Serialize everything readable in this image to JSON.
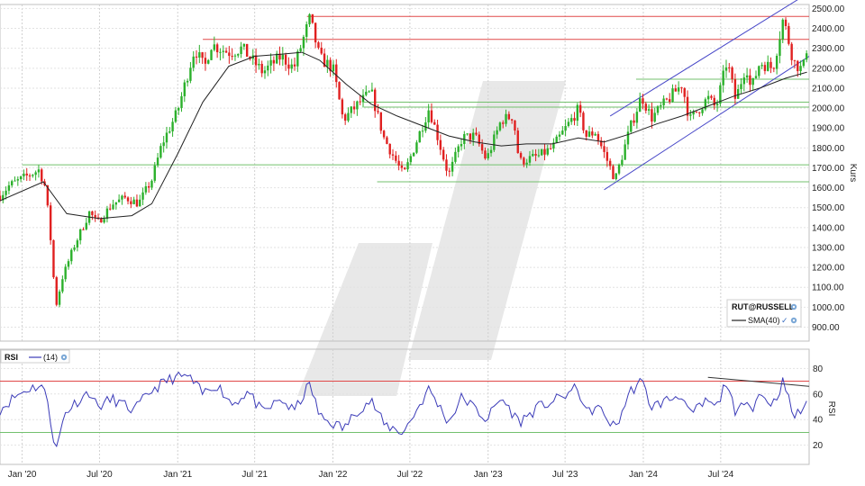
{
  "chart_data": [
    {
      "type": "candlestick",
      "symbol": "RUT@RUSSELL",
      "ylabel": "Kurs",
      "ylim": [
        830,
        2520
      ],
      "yticks": [
        900,
        1000,
        1100,
        1200,
        1300,
        1400,
        1500,
        1600,
        1700,
        1800,
        1900,
        2000,
        2100,
        2200,
        2300,
        2400,
        2500
      ],
      "ytick_labels": [
        "900.00",
        "1000.00",
        "1100.00",
        "1200.00",
        "1300.00",
        "1400.00",
        "1500.00",
        "1600.00",
        "1700.00",
        "1800.00",
        "1900.00",
        "2000.00",
        "2100.00",
        "2200.00",
        "2300.00",
        "2400.00",
        "2500.00"
      ],
      "xlim": [
        "2019-11-10",
        "2025-01-25"
      ],
      "xticks": [
        "2020-01-01",
        "2020-07-01",
        "2021-01-01",
        "2021-07-01",
        "2022-01-01",
        "2022-07-01",
        "2023-01-01",
        "2023-07-01",
        "2024-01-01",
        "2024-07-01"
      ],
      "xtick_labels": [
        "Jan '20",
        "Jul '20",
        "Jan '21",
        "Jul '21",
        "Jan '22",
        "Jul '22",
        "Jan '23",
        "Jul '23",
        "Jan '24",
        "Jul '24"
      ],
      "close_path": [
        [
          "2019-11-10",
          1560
        ],
        [
          "2019-12-01",
          1610
        ],
        [
          "2020-01-05",
          1650
        ],
        [
          "2020-02-10",
          1690
        ],
        [
          "2020-02-25",
          1600
        ],
        [
          "2020-03-10",
          1300
        ],
        [
          "2020-03-20",
          1000
        ],
        [
          "2020-04-05",
          1150
        ],
        [
          "2020-05-01",
          1300
        ],
        [
          "2020-06-08",
          1480
        ],
        [
          "2020-06-25",
          1420
        ],
        [
          "2020-08-01",
          1520
        ],
        [
          "2020-09-01",
          1550
        ],
        [
          "2020-10-01",
          1520
        ],
        [
          "2020-11-01",
          1640
        ],
        [
          "2020-11-25",
          1820
        ],
        [
          "2020-12-31",
          1980
        ],
        [
          "2021-02-10",
          2300
        ],
        [
          "2021-03-05",
          2200
        ],
        [
          "2021-03-20",
          2320
        ],
        [
          "2021-05-01",
          2280
        ],
        [
          "2021-06-01",
          2300
        ],
        [
          "2021-07-20",
          2180
        ],
        [
          "2021-09-01",
          2260
        ],
        [
          "2021-10-01",
          2200
        ],
        [
          "2021-11-08",
          2450
        ],
        [
          "2021-12-01",
          2250
        ],
        [
          "2022-01-01",
          2200
        ],
        [
          "2022-01-25",
          1940
        ],
        [
          "2022-03-01",
          2020
        ],
        [
          "2022-04-01",
          2080
        ],
        [
          "2022-05-01",
          1850
        ],
        [
          "2022-06-16",
          1660
        ],
        [
          "2022-08-15",
          2000
        ],
        [
          "2022-09-01",
          1880
        ],
        [
          "2022-09-30",
          1660
        ],
        [
          "2022-11-01",
          1850
        ],
        [
          "2022-12-01",
          1860
        ],
        [
          "2022-12-28",
          1740
        ],
        [
          "2023-02-01",
          1940
        ],
        [
          "2023-03-01",
          1960
        ],
        [
          "2023-03-15",
          1730
        ],
        [
          "2023-05-01",
          1760
        ],
        [
          "2023-06-01",
          1800
        ],
        [
          "2023-07-31",
          1990
        ],
        [
          "2023-08-20",
          1860
        ],
        [
          "2023-09-10",
          1880
        ],
        [
          "2023-10-27",
          1640
        ],
        [
          "2023-12-01",
          1900
        ],
        [
          "2023-12-28",
          2060
        ],
        [
          "2024-01-20",
          1950
        ],
        [
          "2024-04-01",
          2120
        ],
        [
          "2024-04-19",
          1940
        ],
        [
          "2024-06-01",
          2050
        ],
        [
          "2024-06-20",
          2000
        ],
        [
          "2024-07-16",
          2240
        ],
        [
          "2024-08-05",
          2040
        ],
        [
          "2024-08-30",
          2220
        ],
        [
          "2024-09-10",
          2090
        ],
        [
          "2024-10-01",
          2230
        ],
        [
          "2024-11-01",
          2200
        ],
        [
          "2024-11-25",
          2450
        ],
        [
          "2024-12-20",
          2230
        ],
        [
          "2025-01-10",
          2190
        ],
        [
          "2025-01-20",
          2310
        ]
      ],
      "series": [
        {
          "name": "SMA(40)",
          "points": [
            [
              "2019-11-10",
              1535
            ],
            [
              "2020-02-20",
              1630
            ],
            [
              "2020-04-15",
              1470
            ],
            [
              "2020-07-01",
              1445
            ],
            [
              "2020-09-15",
              1460
            ],
            [
              "2020-11-01",
              1520
            ],
            [
              "2021-01-01",
              1770
            ],
            [
              "2021-03-01",
              2030
            ],
            [
              "2021-05-01",
              2210
            ],
            [
              "2021-07-01",
              2260
            ],
            [
              "2021-09-01",
              2270
            ],
            [
              "2021-10-20",
              2280
            ],
            [
              "2021-12-01",
              2240
            ],
            [
              "2022-02-01",
              2120
            ],
            [
              "2022-04-01",
              2020
            ],
            [
              "2022-06-01",
              1960
            ],
            [
              "2022-08-01",
              1910
            ],
            [
              "2022-10-01",
              1860
            ],
            [
              "2022-12-01",
              1830
            ],
            [
              "2023-02-01",
              1810
            ],
            [
              "2023-04-01",
              1820
            ],
            [
              "2023-06-01",
              1820
            ],
            [
              "2023-08-01",
              1850
            ],
            [
              "2023-10-01",
              1830
            ],
            [
              "2023-12-01",
              1870
            ],
            [
              "2024-02-01",
              1920
            ],
            [
              "2024-04-01",
              1960
            ],
            [
              "2024-06-01",
              2010
            ],
            [
              "2024-08-01",
              2060
            ],
            [
              "2024-10-01",
              2100
            ],
            [
              "2024-12-01",
              2150
            ],
            [
              "2025-01-20",
              2180
            ]
          ]
        }
      ],
      "horizontal_lines": [
        {
          "value": 2460,
          "color": "#e04848",
          "from": "2021-11-01",
          "to": "2025-01-25"
        },
        {
          "value": 2345,
          "color": "#e04848",
          "from": "2021-03-01",
          "to": "2025-01-25"
        },
        {
          "value": 2145,
          "color": "#73c16e",
          "from": "2023-12-15",
          "to": "2025-01-25"
        },
        {
          "value": 2030,
          "color": "#73c16e",
          "from": "2022-03-15",
          "to": "2025-01-25"
        },
        {
          "value": 2005,
          "color": "#73c16e",
          "from": "2022-03-15",
          "to": "2025-01-25"
        },
        {
          "value": 1715,
          "color": "#73c16e",
          "from": "2020-01-01",
          "to": "2025-01-25"
        },
        {
          "value": 1630,
          "color": "#73c16e",
          "from": "2022-04-15",
          "to": "2025-01-25"
        }
      ],
      "trend_lines": [
        {
          "from": [
            "2023-10-01",
            1590
          ],
          "to": [
            "2025-01-25",
            2260
          ],
          "color": "#4848c8"
        },
        {
          "from": [
            "2023-10-15",
            1960
          ],
          "to": [
            "2025-01-10",
            2560
          ],
          "color": "#4848c8"
        }
      ],
      "legend": {
        "symbol_label": "RUT@RUSSELL",
        "sma_label": "SMA(40)",
        "placement": "bottom-right"
      }
    },
    {
      "type": "line",
      "title": "RSI",
      "series": [
        {
          "name": "(14)",
          "points": [
            [
              "2019-11-10",
              48
            ],
            [
              "2019-12-15",
              58
            ],
            [
              "2020-01-15",
              64
            ],
            [
              "2020-02-15",
              67
            ],
            [
              "2020-03-01",
              55
            ],
            [
              "2020-03-15",
              25
            ],
            [
              "2020-03-22",
              17
            ],
            [
              "2020-04-10",
              45
            ],
            [
              "2020-05-01",
              52
            ],
            [
              "2020-06-08",
              62
            ],
            [
              "2020-06-25",
              50
            ],
            [
              "2020-08-01",
              56
            ],
            [
              "2020-09-20",
              47
            ],
            [
              "2020-11-01",
              63
            ],
            [
              "2020-12-15",
              72
            ],
            [
              "2021-01-25",
              74
            ],
            [
              "2021-03-01",
              60
            ],
            [
              "2021-04-01",
              68
            ],
            [
              "2021-05-10",
              52
            ],
            [
              "2021-06-15",
              62
            ],
            [
              "2021-07-20",
              45
            ],
            [
              "2021-09-01",
              56
            ],
            [
              "2021-10-01",
              46
            ],
            [
              "2021-11-08",
              68
            ],
            [
              "2021-12-01",
              42
            ],
            [
              "2022-01-27",
              33
            ],
            [
              "2022-03-01",
              48
            ],
            [
              "2022-04-01",
              55
            ],
            [
              "2022-05-01",
              36
            ],
            [
              "2022-06-16",
              30
            ],
            [
              "2022-08-15",
              64
            ],
            [
              "2022-09-30",
              38
            ],
            [
              "2022-11-01",
              58
            ],
            [
              "2022-12-28",
              40
            ],
            [
              "2023-02-01",
              57
            ],
            [
              "2023-03-15",
              38
            ],
            [
              "2023-05-01",
              50
            ],
            [
              "2023-06-15",
              56
            ],
            [
              "2023-07-31",
              65
            ],
            [
              "2023-08-20",
              45
            ],
            [
              "2023-09-15",
              50
            ],
            [
              "2023-10-27",
              33
            ],
            [
              "2023-12-01",
              62
            ],
            [
              "2023-12-28",
              70
            ],
            [
              "2024-01-20",
              50
            ],
            [
              "2024-04-01",
              60
            ],
            [
              "2024-04-19",
              43
            ],
            [
              "2024-06-01",
              55
            ],
            [
              "2024-06-20",
              48
            ],
            [
              "2024-07-16",
              72
            ],
            [
              "2024-08-05",
              40
            ],
            [
              "2024-08-30",
              60
            ],
            [
              "2024-09-10",
              48
            ],
            [
              "2024-10-01",
              60
            ],
            [
              "2024-11-01",
              52
            ],
            [
              "2024-11-25",
              70
            ],
            [
              "2024-12-20",
              42
            ],
            [
              "2025-01-10",
              48
            ],
            [
              "2025-01-20",
              56
            ]
          ]
        }
      ],
      "ylabel": "RSI",
      "ylim": [
        5,
        95
      ],
      "yticks": [
        20,
        40,
        60,
        80
      ],
      "ytick_labels": [
        "20",
        "40",
        "60",
        "80"
      ],
      "horizontal_lines": [
        {
          "value": 70,
          "color": "#e04848"
        },
        {
          "value": 30,
          "color": "#73c16e"
        }
      ],
      "trend_lines": [
        {
          "from": [
            "2024-06-01",
            73
          ],
          "to": [
            "2025-01-25",
            66
          ],
          "color": "#333333"
        }
      ]
    }
  ],
  "icons": {
    "symbol_menu": "gear-icon",
    "sma_toggle": "check-icon",
    "sma_menu": "gear-icon",
    "rsi_menu": "gear-icon"
  },
  "colors": {
    "up": "#2bb02b",
    "down": "#e02020",
    "sma": "#222222",
    "rsi_line": "#3b3bb8",
    "watermark": "#e6e6e6"
  }
}
